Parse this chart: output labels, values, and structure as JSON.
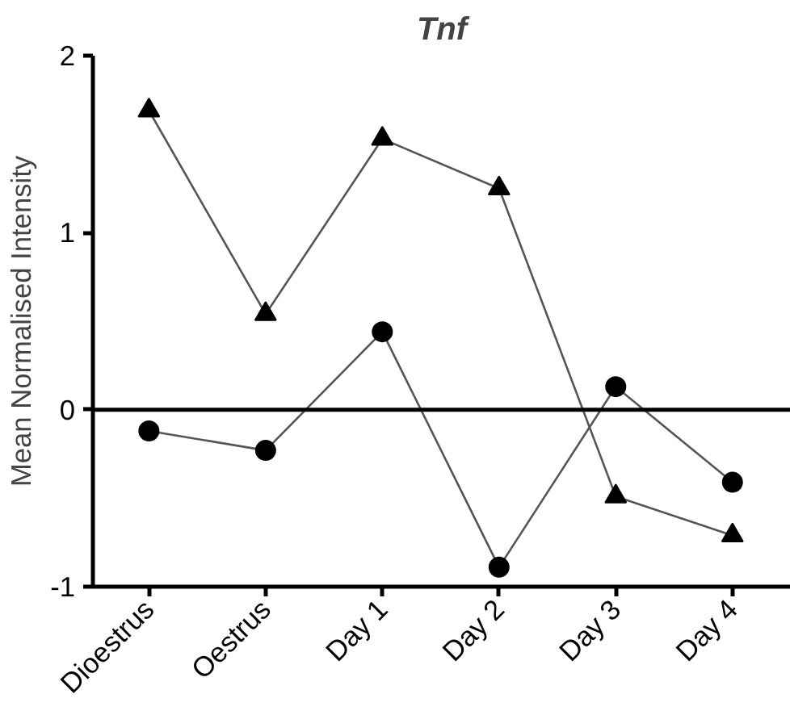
{
  "chart_data": {
    "type": "line",
    "title": "Tnf",
    "ylabel": "Mean Normalised Intensity",
    "categories": [
      "Dioestrus",
      "Oestrus",
      "Day 1",
      "Day 2",
      "Day 3",
      "Day 4"
    ],
    "series": [
      {
        "color": "#000000",
        "marker": "triangle",
        "values": [
          1.69,
          0.54,
          1.53,
          1.25,
          -0.49,
          -0.71
        ]
      },
      {
        "color": "#000000",
        "marker": "circle",
        "values": [
          -0.12,
          -0.23,
          0.44,
          -0.89,
          0.13,
          -0.41
        ]
      }
    ],
    "ylim": [
      -1,
      2
    ],
    "yticks": [
      -1,
      0,
      1,
      2
    ],
    "grid": false,
    "ref_lines": [
      {
        "axis": "y",
        "value": 0,
        "color": "#000000"
      }
    ]
  }
}
